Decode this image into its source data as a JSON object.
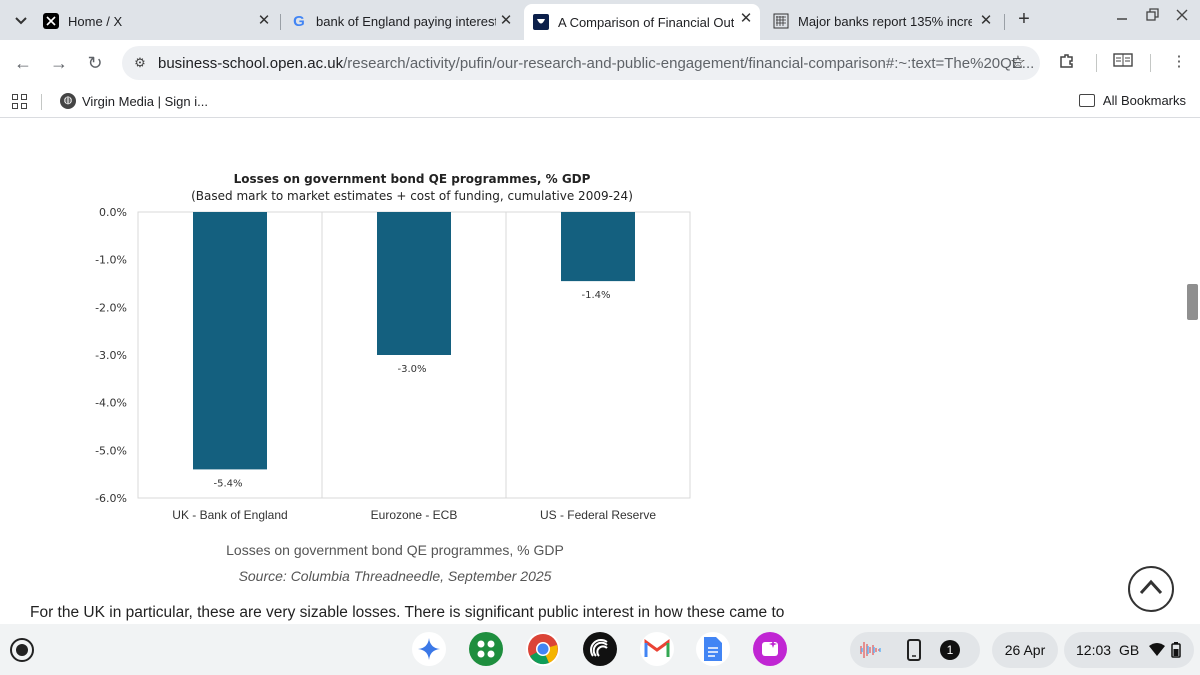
{
  "browser": {
    "tabs": [
      {
        "title": "Home / X",
        "icon": "x-logo-icon",
        "active": false
      },
      {
        "title": "bank of England paying interest",
        "icon": "google-icon",
        "active": false
      },
      {
        "title": "A Comparison of Financial Outt",
        "icon": "open-university-icon",
        "active": true
      },
      {
        "title": "Major banks report 135% increa",
        "icon": "parliament-icon",
        "active": false
      }
    ],
    "address": {
      "domain": "business-school.open.ac.uk",
      "path": "/research/activity/pufin/our-research-and-public-engagement/financial-comparison#:~:text=The%20QE..."
    },
    "bookmarks": {
      "items": [
        {
          "label": "Virgin Media | Sign i..."
        }
      ],
      "all_label": "All Bookmarks"
    }
  },
  "chart_data": {
    "type": "bar",
    "title": "Losses on government bond QE programmes, % GDP",
    "subtitle": "(Based mark to market estimates + cost of funding, cumulative 2009-24)",
    "categories": [
      "UK - Bank of England",
      "Eurozone - ECB",
      "US - Federal Reserve"
    ],
    "values": [
      -5.4,
      -3.0,
      -1.45
    ],
    "data_labels": [
      "-5.4%",
      "-3.0%",
      "-1.4%"
    ],
    "y_ticks": [
      "0.0%",
      "-1.0%",
      "-2.0%",
      "-3.0%",
      "-4.0%",
      "-5.0%",
      "-6.0%"
    ],
    "ylim": [
      -6.0,
      0.0
    ],
    "grid": true,
    "bar_color": "#14607f"
  },
  "page": {
    "caption": "Losses on government bond QE programmes, % GDP",
    "source": "Source: Columbia Threadneedle, September 2025",
    "body_text": "For the UK in particular, these are very sizable losses. There is significant public interest in how these came to"
  },
  "shelf": {
    "notification_count": "1",
    "date": "26 Apr",
    "time": "12:03",
    "locale": "GB"
  }
}
